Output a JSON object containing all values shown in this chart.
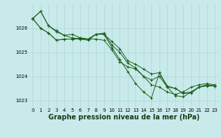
{
  "background_color": "#c8eaea",
  "grid_color": "#b0d4d4",
  "line_color": "#1a5e1a",
  "marker_color": "#1a5e1a",
  "xlabel": "Graphe pression niveau de la mer (hPa)",
  "xlabel_fontsize": 7,
  "xlim": [
    -0.5,
    23.5
  ],
  "ylim": [
    1022.7,
    1027.0
  ],
  "yticks": [
    1023,
    1024,
    1025,
    1026
  ],
  "xticks": [
    0,
    1,
    2,
    3,
    4,
    5,
    6,
    7,
    8,
    9,
    10,
    11,
    12,
    13,
    14,
    15,
    16,
    17,
    18,
    19,
    20,
    21,
    22,
    23
  ],
  "tick_fontsize": 5,
  "series": [
    [
      1026.4,
      1026.7,
      1026.1,
      1025.9,
      1025.7,
      1025.75,
      1025.6,
      1025.55,
      1025.75,
      1025.8,
      1025.3,
      1025.0,
      1024.55,
      1024.35,
      1024.0,
      1023.65,
      1023.55,
      1023.35,
      1023.25,
      1023.35,
      1023.55,
      1023.65,
      1023.7,
      1023.65
    ],
    [
      1026.4,
      1026.7,
      1026.1,
      1025.85,
      1025.7,
      1025.6,
      1025.55,
      1025.5,
      1025.75,
      1025.75,
      1025.2,
      1024.7,
      1024.2,
      1023.7,
      1023.35,
      1023.1,
      1024.15,
      1023.55,
      1023.2,
      1023.15,
      1023.35,
      1023.55,
      1023.65,
      1023.6
    ],
    [
      1026.4,
      1026.0,
      1025.8,
      1025.5,
      1025.55,
      1025.55,
      1025.55,
      1025.55,
      1025.75,
      1025.75,
      1025.45,
      1025.15,
      1024.65,
      1024.5,
      1024.3,
      1024.1,
      1024.15,
      1023.6,
      1023.5,
      1023.3,
      1023.35,
      1023.55,
      1023.65,
      1023.6
    ],
    [
      1026.4,
      1026.0,
      1025.8,
      1025.5,
      1025.55,
      1025.55,
      1025.6,
      1025.55,
      1025.55,
      1025.5,
      1025.1,
      1024.6,
      1024.4,
      1024.3,
      1024.0,
      1023.85,
      1024.0,
      1023.55,
      1023.5,
      1023.3,
      1023.3,
      1023.55,
      1023.6,
      1023.6
    ]
  ]
}
